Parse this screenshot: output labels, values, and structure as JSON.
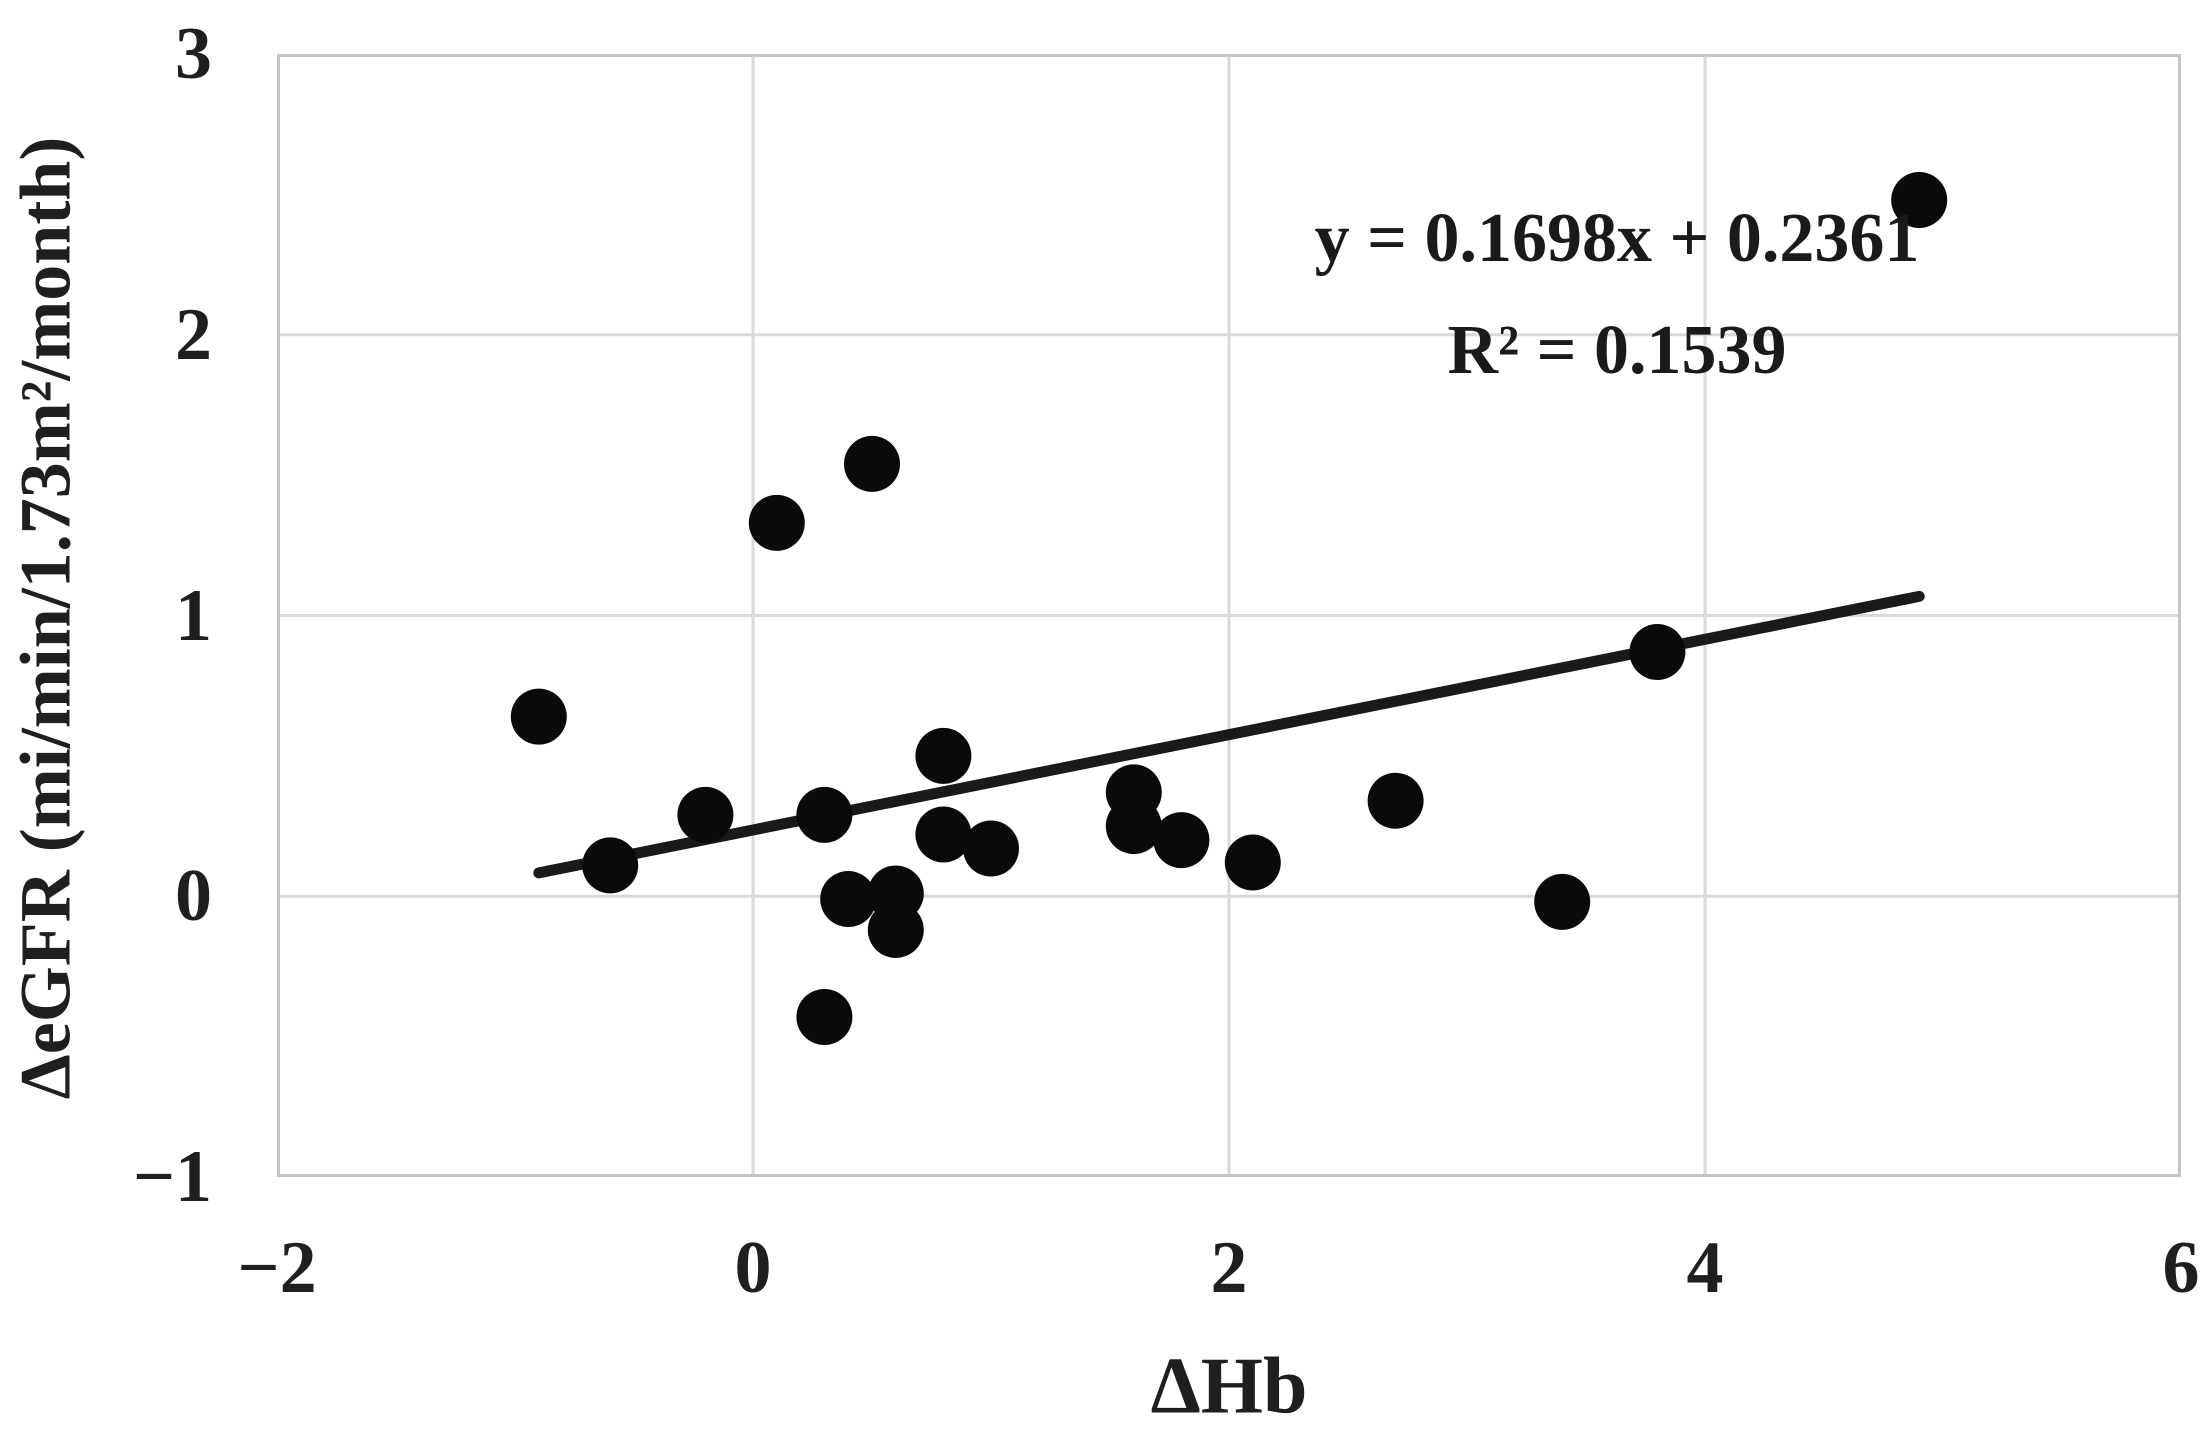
{
  "figure": {
    "background": "#ffffff"
  },
  "chart_data": {
    "type": "scatter",
    "title": "",
    "xlabel": "ΔHb",
    "ylabel": "ΔeGFR (mi/min/1.73m²/month)",
    "xlim": [
      -2,
      6
    ],
    "ylim": [
      -1,
      3
    ],
    "xticks": {
      "values": [
        -2,
        0,
        2,
        4,
        6
      ],
      "labels": [
        "−2",
        "0",
        "2",
        "4",
        "6"
      ]
    },
    "yticks": {
      "values": [
        -1,
        0,
        1,
        2,
        3
      ],
      "labels": [
        "−1",
        "0",
        "1",
        "2",
        "3"
      ]
    },
    "grid": true,
    "legend": "none",
    "points": [
      [
        -0.9,
        0.64
      ],
      [
        -0.6,
        0.11
      ],
      [
        -0.2,
        0.29
      ],
      [
        0.1,
        1.33
      ],
      [
        0.3,
        0.29
      ],
      [
        0.3,
        -0.43
      ],
      [
        0.4,
        -0.01
      ],
      [
        0.5,
        1.54
      ],
      [
        0.6,
        0.01
      ],
      [
        0.6,
        -0.12
      ],
      [
        0.8,
        0.5
      ],
      [
        0.8,
        0.22
      ],
      [
        1.0,
        0.17
      ],
      [
        1.6,
        0.37
      ],
      [
        1.6,
        0.25
      ],
      [
        1.8,
        0.2
      ],
      [
        2.1,
        0.12
      ],
      [
        2.7,
        0.34
      ],
      [
        3.4,
        -0.02
      ],
      [
        3.8,
        0.87
      ],
      [
        4.9,
        2.48
      ]
    ],
    "trendline": {
      "slope": 0.1698,
      "intercept": 0.2361,
      "x_start": -0.9,
      "x_end": 4.9
    },
    "annotation": {
      "equation": "y = 0.1698x + 0.2361",
      "r_squared": "R² = 0.1539"
    }
  },
  "style": {
    "point_color": "#0a0a0a",
    "point_radius": 28,
    "trendline_color": "#1a1a1a",
    "trendline_width": 11,
    "grid_color": "#d9d9d9",
    "border_color": "#c6c6c6",
    "text_color": "#1f1f1f"
  }
}
